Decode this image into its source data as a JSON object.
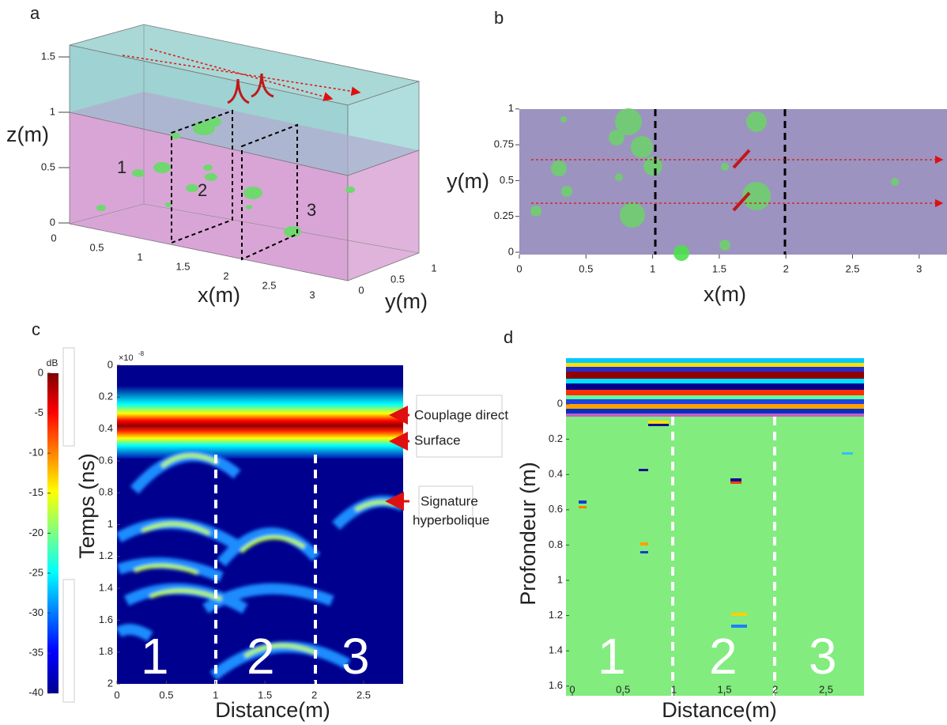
{
  "panels": [
    {
      "label": "a",
      "z_ticks": [
        0,
        0.5,
        1,
        1.5
      ],
      "x_ticks": [
        0,
        0.5,
        1,
        1.5,
        2,
        2.5,
        3
      ],
      "y_ticks": [
        0,
        0.5,
        1
      ],
      "z_label": "z(m)",
      "x_label": "x(m)",
      "y_label": "y(m)",
      "zones": [
        "1",
        "2",
        "3"
      ]
    },
    {
      "label": "b",
      "x_ticks": [
        0,
        0.5,
        1,
        1.5,
        2,
        2.5,
        3
      ],
      "y_ticks": [
        0,
        0.25,
        0.5,
        0.75,
        1
      ],
      "x_label": "x(m)",
      "y_label": "y(m)"
    },
    {
      "label": "c",
      "colorbar_unit": "dB",
      "colorbar_ticks": [
        0,
        -5,
        -10,
        -15,
        -20,
        -25,
        -30,
        -35,
        -40
      ],
      "y_exponent": "×10",
      "y_exponent_power": "-8",
      "y_ticks": [
        0,
        0.2,
        0.4,
        0.6,
        0.8,
        1,
        1.2,
        1.4,
        1.6,
        1.8,
        2
      ],
      "x_ticks": [
        0,
        0.5,
        1,
        1.5,
        2,
        2.5
      ],
      "y_label": "Temps (ns)",
      "x_label": "Distance(m)",
      "annotations": [
        "Couplage direct",
        "Surface",
        "Signature",
        "hyperbolique"
      ],
      "zones": [
        "1",
        "2",
        "3"
      ]
    },
    {
      "label": "d",
      "y_ticks": [
        0,
        0.2,
        0.4,
        0.6,
        0.8,
        1,
        1.2,
        1.4,
        1.6
      ],
      "x_ticks": [
        0,
        0.5,
        1,
        1.5,
        2,
        2.5
      ],
      "y_label": "Profondeur (m)",
      "x_label": "Distance(m)",
      "zones": [
        "1",
        "2",
        "3"
      ]
    }
  ]
}
